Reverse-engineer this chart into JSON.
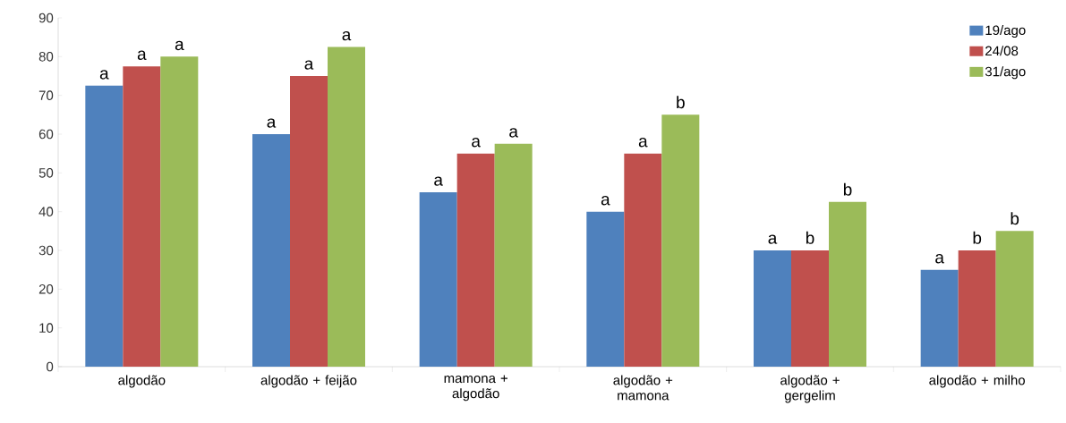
{
  "chart_data": {
    "type": "bar",
    "categories": [
      "algodão",
      "algodão + feijão",
      "mamona + algodão",
      "algodão + mamona",
      "algodão + gergelim",
      "algodão + milho"
    ],
    "series": [
      {
        "name": "19/ago",
        "color": "#4f81bd",
        "values": [
          72.5,
          60,
          45,
          40,
          30,
          25
        ]
      },
      {
        "name": "24/08",
        "color": "#c0504d",
        "values": [
          77.5,
          75,
          55,
          55,
          30,
          30
        ]
      },
      {
        "name": "31/ago",
        "color": "#9bbb59",
        "values": [
          80,
          82.5,
          57.5,
          65,
          42.5,
          35
        ]
      }
    ],
    "ylim": [
      0,
      90
    ],
    "yticks": [
      0,
      10,
      20,
      30,
      40,
      50,
      60,
      70,
      80,
      90
    ],
    "legend": "top right",
    "grid": false,
    "annotations": [
      "a",
      "a",
      "a",
      "a",
      "a",
      "a",
      "a",
      "a",
      "a",
      "a",
      "a",
      "b",
      "a",
      "b",
      "b",
      "a",
      "b",
      "b"
    ]
  }
}
